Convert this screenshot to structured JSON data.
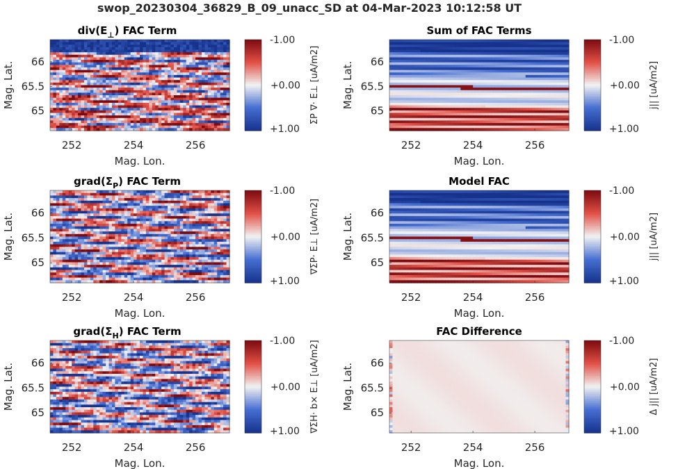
{
  "figure": {
    "title": "swop_20230304_36829_B_09_unacc_SD at 04-Mar-2023 10:12:58 UT"
  },
  "colors": {
    "cmap_low": "#16328c",
    "cmap_mid": "#f2f2f2",
    "cmap_high": "#7a0a0f",
    "text": "#262626"
  },
  "chart_data": [
    {
      "id": "div_e",
      "type": "heatmap",
      "title": "div(E⊥) FAC Term",
      "title_main": "div(E",
      "title_sub": "⊥",
      "title_end": ") FAC Term",
      "xlabel": "Mag. Lon.",
      "ylabel": "Mag. Lat.",
      "xlim": [
        251.3,
        257.1
      ],
      "ylim": [
        64.6,
        66.45
      ],
      "xticks": [
        252,
        254,
        256
      ],
      "yticks": [
        65,
        65.5,
        66
      ],
      "ytick_labels": [
        "65",
        "65.5",
        "66"
      ],
      "clim": [
        -1.0,
        1.0
      ],
      "cbar_ticks": [
        "-1.00",
        "+0.00",
        "+1.00"
      ],
      "cbar_label": "ΣP ∇· E⊥ [uA/m2]",
      "pattern": "noisy",
      "seed": 11,
      "bias": 0.2
    },
    {
      "id": "sum",
      "type": "heatmap",
      "title": "Sum of FAC Terms",
      "xlabel": "Mag. Lon.",
      "ylabel": "Mag. Lat.",
      "xlim": [
        251.3,
        257.1
      ],
      "ylim": [
        64.6,
        66.45
      ],
      "xticks": [
        252,
        254,
        256
      ],
      "yticks": [
        65,
        65.5,
        66
      ],
      "ytick_labels": [
        "65",
        "65.5",
        "66"
      ],
      "clim": [
        -1.0,
        1.0
      ],
      "cbar_ticks": [
        "-1.00",
        "+0.00",
        "+1.00"
      ],
      "cbar_label": "j|| [uA/m2]",
      "pattern": "bands",
      "seed": 3,
      "bias": 0
    },
    {
      "id": "grad_sp",
      "type": "heatmap",
      "title": "grad(ΣP) FAC Term",
      "title_main": "grad(Σ",
      "title_sub": "P",
      "title_end": ") FAC Term",
      "xlabel": "Mag. Lon.",
      "ylabel": "Mag. Lat.",
      "xlim": [
        251.3,
        257.1
      ],
      "ylim": [
        64.6,
        66.45
      ],
      "xticks": [
        252,
        254,
        256
      ],
      "yticks": [
        65,
        65.5,
        66
      ],
      "ytick_labels": [
        "65",
        "65.5",
        "66"
      ],
      "clim": [
        -1.0,
        1.0
      ],
      "cbar_ticks": [
        "-1.00",
        "+0.00",
        "+1.00"
      ],
      "cbar_label": "∇ΣP· E⊥ [uA/m2]",
      "pattern": "noisy",
      "seed": 29,
      "bias": -0.05
    },
    {
      "id": "model",
      "type": "heatmap",
      "title": "Model FAC",
      "xlabel": "Mag. Lon.",
      "ylabel": "Mag. Lat.",
      "xlim": [
        251.3,
        257.1
      ],
      "ylim": [
        64.6,
        66.45
      ],
      "xticks": [
        252,
        254,
        256
      ],
      "yticks": [
        65,
        65.5,
        66
      ],
      "ytick_labels": [
        "65",
        "65.5",
        "66"
      ],
      "clim": [
        -1.0,
        1.0
      ],
      "cbar_ticks": [
        "-1.00",
        "+0.00",
        "+1.00"
      ],
      "cbar_label": "j|| [uA/m2]",
      "pattern": "bands",
      "seed": 5,
      "bias": 0
    },
    {
      "id": "grad_sh",
      "type": "heatmap",
      "title": "grad(ΣH) FAC Term",
      "title_main": "grad(Σ",
      "title_sub": "H",
      "title_end": ") FAC Term",
      "xlabel": "Mag. Lon.",
      "ylabel": "Mag. Lat.",
      "xlim": [
        251.3,
        257.1
      ],
      "ylim": [
        64.6,
        66.45
      ],
      "xticks": [
        252,
        254,
        256
      ],
      "yticks": [
        65,
        65.5,
        66
      ],
      "ytick_labels": [
        "65",
        "65.5",
        "66"
      ],
      "clim": [
        -1.0,
        1.0
      ],
      "cbar_ticks": [
        "-1.00",
        "+0.00",
        "+1.00"
      ],
      "cbar_label": "∇ΣH· b× E⊥ [uA/m2]",
      "pattern": "noisy",
      "seed": 47,
      "bias": -0.15
    },
    {
      "id": "diff",
      "type": "heatmap",
      "title": "FAC Difference",
      "xlabel": "Mag. Lon.",
      "ylabel": "Mag. Lat.",
      "xlim": [
        251.3,
        257.1
      ],
      "ylim": [
        64.6,
        66.45
      ],
      "xticks": [
        252,
        254,
        256
      ],
      "yticks": [
        65,
        65.5,
        66
      ],
      "ytick_labels": [
        "65",
        "65.5",
        "66"
      ],
      "clim": [
        -1.0,
        1.0
      ],
      "cbar_ticks": [
        "-1.00",
        "+0.00",
        "+1.00"
      ],
      "cbar_label": "Δ j|| [uA/m2]",
      "pattern": "flat",
      "seed": 61,
      "bias": 0
    }
  ]
}
